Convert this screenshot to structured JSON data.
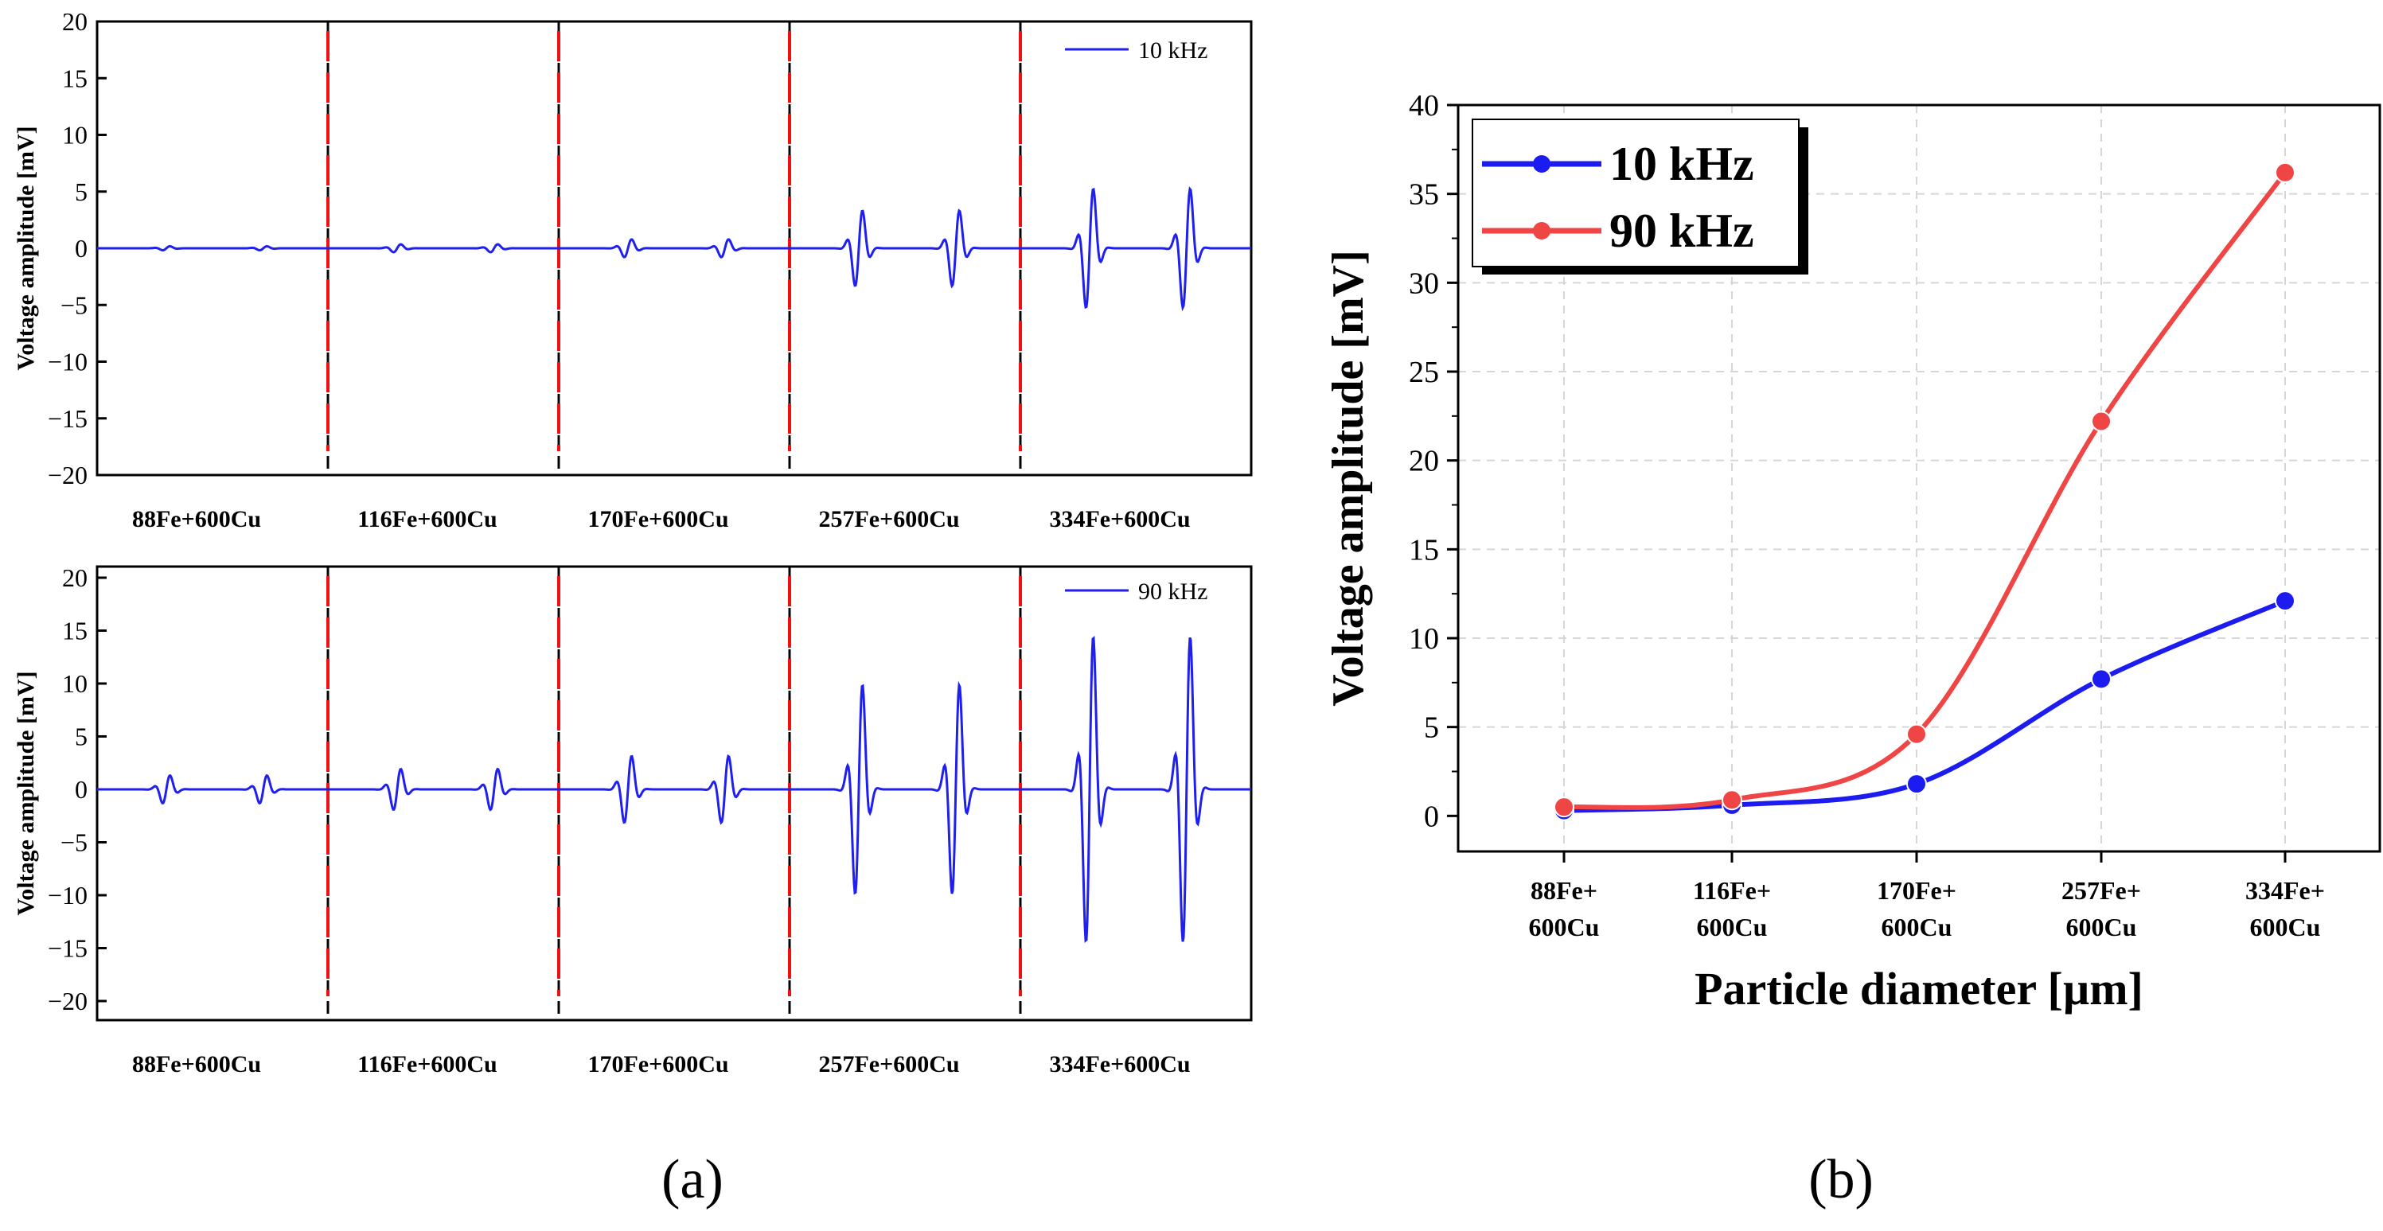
{
  "panel_a": {
    "ylabel": "Voltage amplitude [mV]",
    "top": {
      "legend": "10 kHz",
      "yticks": [
        20,
        15,
        10,
        5,
        0,
        -5,
        -10,
        -15,
        -20
      ],
      "ylim": [
        -20,
        20
      ],
      "segment_amplitudes": [
        0.2,
        0.4,
        0.9,
        3.8,
        6.0
      ],
      "color": "#1f1fef"
    },
    "bottom": {
      "legend": "90 kHz",
      "yticks": [
        20,
        15,
        10,
        5,
        0,
        -5,
        -10,
        -15,
        -20
      ],
      "ylim": [
        -22,
        22
      ],
      "segment_amplitudes": [
        1.5,
        2.2,
        3.6,
        11.3,
        16.5
      ],
      "color": "#1f1fef"
    },
    "categories": [
      "88Fe+600Cu",
      "116Fe+600Cu",
      "170Fe+600Cu",
      "257Fe+600Cu",
      "334Fe+600Cu"
    ],
    "divider_color": "#ee1111",
    "caption": "(a)"
  },
  "chart_data": {
    "type": "line",
    "ylabel": "Voltage amplitude [mV]",
    "xlabel": "Particle diameter [µm]",
    "ylim": [
      -2,
      40
    ],
    "yticks": [
      0,
      5,
      10,
      15,
      20,
      25,
      30,
      35,
      40
    ],
    "categories": [
      [
        "88Fe+",
        "600Cu"
      ],
      [
        "116Fe+",
        "600Cu"
      ],
      [
        "170Fe+",
        "600Cu"
      ],
      [
        "257Fe+",
        "600Cu"
      ],
      [
        "334Fe+",
        "600Cu"
      ]
    ],
    "series": [
      {
        "name": "10 kHz",
        "values": [
          0.3,
          0.6,
          1.8,
          7.7,
          12.1
        ],
        "color": "#1c1cf0"
      },
      {
        "name": "90 kHz",
        "values": [
          0.5,
          0.9,
          4.6,
          22.2,
          36.2
        ],
        "color": "#f04545"
      }
    ],
    "grid": true,
    "legend_position": "top-left",
    "caption": "(b)"
  }
}
